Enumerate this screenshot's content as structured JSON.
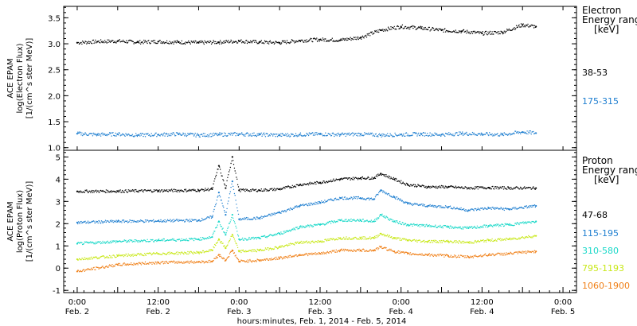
{
  "chart_data": [
    {
      "type": "scatter",
      "ylabel_lines": [
        "ACE EPAM",
        "log(Electron Flux)",
        "[1/(cm^s ster MeV)]"
      ],
      "ylim": [
        0.95,
        3.72
      ],
      "yticks": [
        1.0,
        1.5,
        2.0,
        2.5,
        3.0,
        3.5
      ],
      "ytick_labels": [
        "1.0",
        "1.5",
        "2.0",
        "2.5",
        "3.0",
        "3.5"
      ],
      "legend_title_lines": [
        "Electron",
        "Energy ranges",
        "[keV]"
      ],
      "series": [
        {
          "name": "38-53",
          "color": "#000000",
          "points": [
            [
              0,
              3.02
            ],
            [
              6,
              3.04
            ],
            [
              12,
              3.05
            ],
            [
              18,
              3.03
            ],
            [
              24,
              3.04
            ],
            [
              30,
              3.03
            ],
            [
              36,
              3.02
            ],
            [
              42,
              3.03
            ],
            [
              48,
              3.05
            ],
            [
              54,
              3.03
            ],
            [
              60,
              3.02
            ],
            [
              66,
              3.06
            ],
            [
              72,
              3.08
            ],
            [
              78,
              3.07
            ],
            [
              84,
              3.12
            ],
            [
              90,
              3.26
            ],
            [
              96,
              3.33
            ],
            [
              102,
              3.3
            ],
            [
              108,
              3.26
            ],
            [
              114,
              3.24
            ],
            [
              120,
              3.2
            ],
            [
              126,
              3.22
            ],
            [
              132,
              3.36
            ],
            [
              136,
              3.33
            ]
          ]
        },
        {
          "name": "175-315",
          "color": "#1f7fd0",
          "points": [
            [
              0,
              1.27
            ],
            [
              6,
              1.25
            ],
            [
              12,
              1.26
            ],
            [
              18,
              1.24
            ],
            [
              24,
              1.25
            ],
            [
              30,
              1.26
            ],
            [
              36,
              1.24
            ],
            [
              42,
              1.25
            ],
            [
              48,
              1.26
            ],
            [
              54,
              1.25
            ],
            [
              60,
              1.24
            ],
            [
              66,
              1.25
            ],
            [
              72,
              1.26
            ],
            [
              78,
              1.25
            ],
            [
              84,
              1.26
            ],
            [
              90,
              1.24
            ],
            [
              96,
              1.25
            ],
            [
              102,
              1.26
            ],
            [
              108,
              1.25
            ],
            [
              114,
              1.27
            ],
            [
              120,
              1.26
            ],
            [
              126,
              1.25
            ],
            [
              132,
              1.3
            ],
            [
              136,
              1.28
            ]
          ]
        }
      ]
    },
    {
      "type": "scatter",
      "ylabel_lines": [
        "ACE EPAM",
        "log(Proton Flux)",
        "[1/(cm^s ster MeV)]"
      ],
      "ylim": [
        -1.1,
        5.3
      ],
      "yticks": [
        -1,
        0,
        1,
        2,
        3,
        4,
        5
      ],
      "ytick_labels": [
        "-1",
        "0",
        "1",
        "2",
        "3",
        "4",
        "5"
      ],
      "legend_title_lines": [
        "Proton",
        "Energy ranges",
        "[keV]"
      ],
      "series": [
        {
          "name": "47-68",
          "color": "#000000",
          "points": [
            [
              0,
              3.45
            ],
            [
              12,
              3.46
            ],
            [
              24,
              3.48
            ],
            [
              36,
              3.5
            ],
            [
              40,
              3.55
            ],
            [
              42,
              4.6
            ],
            [
              44,
              3.6
            ],
            [
              46,
              5.0
            ],
            [
              48,
              3.5
            ],
            [
              54,
              3.5
            ],
            [
              60,
              3.55
            ],
            [
              66,
              3.75
            ],
            [
              72,
              3.85
            ],
            [
              78,
              4.0
            ],
            [
              84,
              4.05
            ],
            [
              88,
              4.05
            ],
            [
              90,
              4.25
            ],
            [
              94,
              4.0
            ],
            [
              98,
              3.75
            ],
            [
              104,
              3.65
            ],
            [
              110,
              3.65
            ],
            [
              116,
              3.6
            ],
            [
              122,
              3.62
            ],
            [
              128,
              3.6
            ],
            [
              136,
              3.6
            ]
          ]
        },
        {
          "name": "115-195",
          "color": "#1f7fd0",
          "points": [
            [
              0,
              2.05
            ],
            [
              12,
              2.1
            ],
            [
              24,
              2.12
            ],
            [
              36,
              2.15
            ],
            [
              40,
              2.3
            ],
            [
              42,
              3.4
            ],
            [
              44,
              2.4
            ],
            [
              46,
              3.9
            ],
            [
              48,
              2.2
            ],
            [
              54,
              2.25
            ],
            [
              60,
              2.5
            ],
            [
              66,
              2.8
            ],
            [
              72,
              2.95
            ],
            [
              78,
              3.15
            ],
            [
              84,
              3.15
            ],
            [
              88,
              3.1
            ],
            [
              90,
              3.5
            ],
            [
              94,
              3.2
            ],
            [
              98,
              2.9
            ],
            [
              104,
              2.8
            ],
            [
              110,
              2.75
            ],
            [
              116,
              2.6
            ],
            [
              122,
              2.7
            ],
            [
              128,
              2.65
            ],
            [
              136,
              2.8
            ]
          ]
        },
        {
          "name": "310-580",
          "color": "#18d8c8",
          "points": [
            [
              0,
              1.1
            ],
            [
              12,
              1.2
            ],
            [
              24,
              1.25
            ],
            [
              36,
              1.3
            ],
            [
              40,
              1.4
            ],
            [
              42,
              2.1
            ],
            [
              44,
              1.5
            ],
            [
              46,
              2.4
            ],
            [
              48,
              1.3
            ],
            [
              54,
              1.35
            ],
            [
              60,
              1.55
            ],
            [
              66,
              1.85
            ],
            [
              72,
              1.95
            ],
            [
              78,
              2.15
            ],
            [
              84,
              2.15
            ],
            [
              88,
              2.1
            ],
            [
              90,
              2.4
            ],
            [
              94,
              2.1
            ],
            [
              98,
              1.95
            ],
            [
              104,
              1.9
            ],
            [
              110,
              1.85
            ],
            [
              116,
              1.8
            ],
            [
              122,
              1.9
            ],
            [
              128,
              1.95
            ],
            [
              136,
              2.1
            ]
          ]
        },
        {
          "name": "795-1193",
          "color": "#c8e818",
          "points": [
            [
              0,
              0.4
            ],
            [
              12,
              0.55
            ],
            [
              24,
              0.65
            ],
            [
              36,
              0.7
            ],
            [
              40,
              0.8
            ],
            [
              42,
              1.3
            ],
            [
              44,
              0.9
            ],
            [
              46,
              1.5
            ],
            [
              48,
              0.75
            ],
            [
              54,
              0.8
            ],
            [
              60,
              0.95
            ],
            [
              66,
              1.15
            ],
            [
              72,
              1.2
            ],
            [
              78,
              1.35
            ],
            [
              84,
              1.35
            ],
            [
              88,
              1.35
            ],
            [
              90,
              1.55
            ],
            [
              94,
              1.35
            ],
            [
              98,
              1.25
            ],
            [
              104,
              1.2
            ],
            [
              110,
              1.2
            ],
            [
              116,
              1.15
            ],
            [
              122,
              1.25
            ],
            [
              128,
              1.3
            ],
            [
              136,
              1.45
            ]
          ]
        },
        {
          "name": "1060-1900",
          "color": "#f08018",
          "points": [
            [
              0,
              -0.15
            ],
            [
              12,
              0.15
            ],
            [
              24,
              0.25
            ],
            [
              36,
              0.28
            ],
            [
              40,
              0.3
            ],
            [
              42,
              0.6
            ],
            [
              44,
              0.35
            ],
            [
              46,
              0.8
            ],
            [
              48,
              0.3
            ],
            [
              54,
              0.35
            ],
            [
              60,
              0.45
            ],
            [
              66,
              0.6
            ],
            [
              72,
              0.65
            ],
            [
              78,
              0.8
            ],
            [
              84,
              0.8
            ],
            [
              88,
              0.8
            ],
            [
              90,
              0.95
            ],
            [
              94,
              0.75
            ],
            [
              98,
              0.65
            ],
            [
              104,
              0.6
            ],
            [
              110,
              0.55
            ],
            [
              116,
              0.5
            ],
            [
              122,
              0.6
            ],
            [
              128,
              0.65
            ],
            [
              136,
              0.75
            ]
          ]
        }
      ]
    }
  ],
  "x_axis": {
    "xlim": [
      -4,
      148
    ],
    "tick_positions": [
      0,
      12,
      24,
      36,
      48,
      60,
      72,
      84,
      96,
      108,
      120,
      132,
      144
    ],
    "major_ticks": [
      {
        "pos": 0,
        "time": "0:00",
        "day": "Feb. 2"
      },
      {
        "pos": 24,
        "time": "12:00",
        "day": "Feb. 2"
      },
      {
        "pos": 48,
        "time": "0:00",
        "day": "Feb. 3"
      },
      {
        "pos": 72,
        "time": "12:00",
        "day": "Feb. 3"
      },
      {
        "pos": 96,
        "time": "0:00",
        "day": "Feb. 4"
      },
      {
        "pos": 120,
        "time": "12:00",
        "day": "Feb. 4"
      },
      {
        "pos": 144,
        "time": "0:00",
        "day": "Feb. 5"
      }
    ],
    "xlabel": "hours:minutes, Feb.  1, 2014 - Feb.  5, 2014"
  }
}
